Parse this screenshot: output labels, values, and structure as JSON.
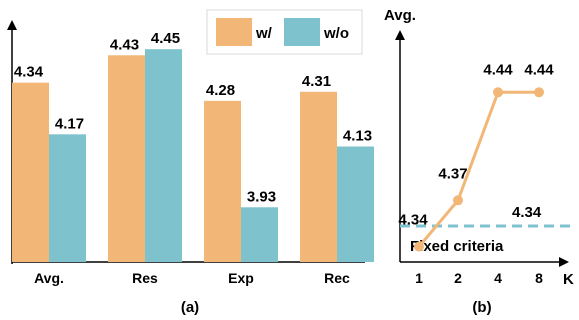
{
  "chart_data": [
    {
      "type": "bar",
      "caption": "(a)",
      "categories": [
        "Avg.",
        "Res",
        "Exp",
        "Rec"
      ],
      "series": [
        {
          "name": "w/",
          "color": "#F2B777",
          "values": [
            4.34,
            4.43,
            4.28,
            4.31
          ],
          "labels": [
            "4.34",
            "4.43",
            "4.28",
            "4.31"
          ]
        },
        {
          "name": "w/o",
          "color": "#7DC2CC",
          "values": [
            4.17,
            4.45,
            3.93,
            4.13
          ],
          "labels": [
            "4.17",
            "4.45",
            "3.93",
            "4.13"
          ]
        }
      ],
      "ylim": [
        3.75,
        4.5
      ],
      "legend_position": "top-right"
    },
    {
      "type": "line",
      "caption": "(b)",
      "ylabel": "Avg.",
      "xlabel": "K",
      "x": [
        "1",
        "2",
        "4",
        "8"
      ],
      "series": [
        {
          "color": "#F2B777",
          "values": [
            4.34,
            4.37,
            4.44,
            4.44
          ],
          "labels": [
            "4.34",
            "4.37",
            "4.44",
            "4.44"
          ]
        }
      ],
      "reference_line": {
        "label": "Fixed criteria",
        "value": 4.34,
        "value_label": "4.34",
        "color": "#7DC2CC",
        "style": "dashed"
      },
      "ylim": [
        4.33,
        4.47
      ]
    }
  ]
}
